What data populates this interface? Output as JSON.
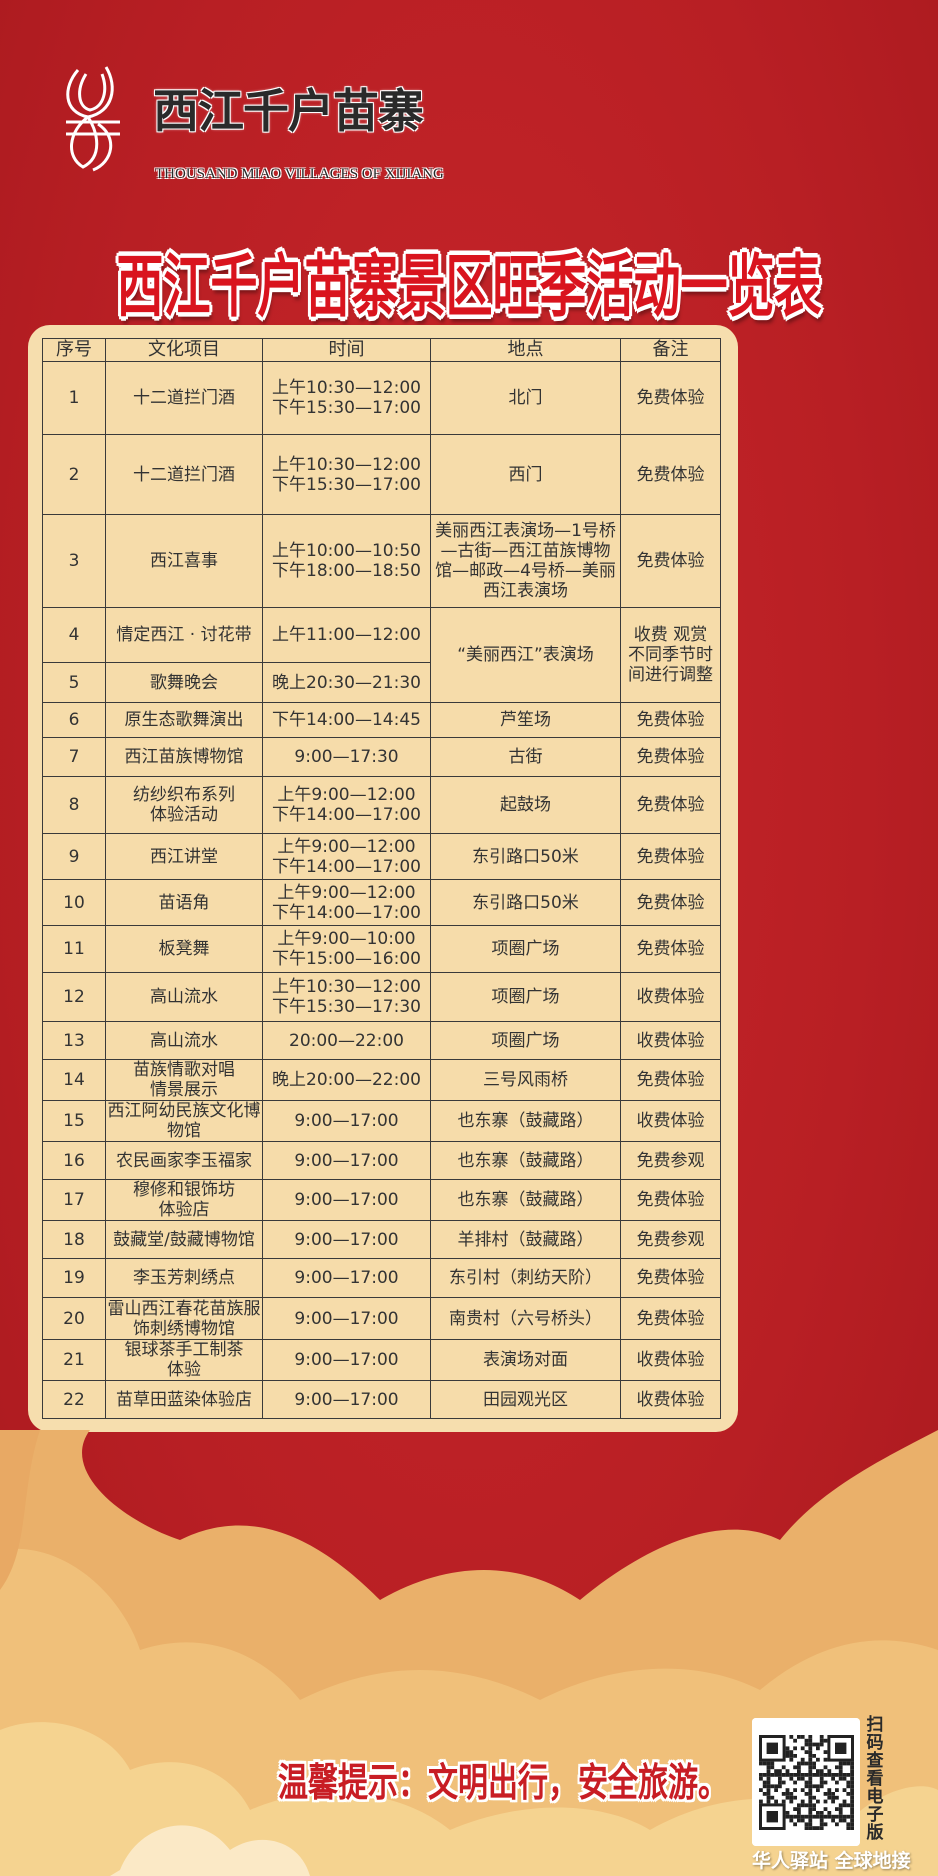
{
  "logo": {
    "cn": "西江千户苗寨",
    "en": "THOUSAND MIAO VILLAGES OF XIJIANG"
  },
  "title": "西江千户苗寨景区旺季活动一览表",
  "colors": {
    "background": "#b81f24",
    "panel": "#f6deae",
    "title": "#d9141e"
  },
  "table": {
    "headers": [
      "序号",
      "文化项目",
      "时间",
      "地点",
      "备注"
    ],
    "rows": [
      {
        "no": "1",
        "item": "十二道拦门酒",
        "time": "上午10:30—12:00\n下午15:30—17:00",
        "place": "北门",
        "note": "免费体验"
      },
      {
        "no": "2",
        "item": "十二道拦门酒",
        "time": "上午10:30—12:00\n下午15:30—17:00",
        "place": "西门",
        "note": "免费体验"
      },
      {
        "no": "3",
        "item": "西江喜事",
        "time": "上午10:00—10:50\n下午18:00—18:50",
        "place": "美丽西江表演场—1号桥\n—古街—西江苗族博物\n馆—邮政—4号桥—美丽\n西江表演场",
        "note": "免费体验"
      },
      {
        "no": "4",
        "item": "情定西江 · 讨花带",
        "time": "上午11:00—12:00",
        "place": "“美丽西江”表演场",
        "note": "收费 观赏\n不同季节时\n间进行调整"
      },
      {
        "no": "5",
        "item": "歌舞晚会",
        "time": "晚上20:30—21:30"
      },
      {
        "no": "6",
        "item": "原生态歌舞演出",
        "time": "下午14:00—14:45",
        "place": "芦笙场",
        "note": "免费体验"
      },
      {
        "no": "7",
        "item": "西江苗族博物馆",
        "time": "9:00—17:30",
        "place": "古街",
        "note": "免费体验"
      },
      {
        "no": "8",
        "item": "纺纱织布系列\n体验活动",
        "time": "上午9:00—12:00\n下午14:00—17:00",
        "place": "起鼓场",
        "note": "免费体验"
      },
      {
        "no": "9",
        "item": "西江讲堂",
        "time": "上午9:00—12:00\n下午14:00—17:00",
        "place": "东引路口50米",
        "note": "免费体验"
      },
      {
        "no": "10",
        "item": "苗语角",
        "time": "上午9:00—12:00\n下午14:00—17:00",
        "place": "东引路口50米",
        "note": "免费体验"
      },
      {
        "no": "11",
        "item": "板凳舞",
        "time": "上午9:00—10:00\n下午15:00—16:00",
        "place": "项圈广场",
        "note": "免费体验"
      },
      {
        "no": "12",
        "item": "高山流水",
        "time": "上午10:30—12:00\n下午15:30—17:30",
        "place": "项圈广场",
        "note": "收费体验"
      },
      {
        "no": "13",
        "item": "高山流水",
        "time": "20:00—22:00",
        "place": "项圈广场",
        "note": "收费体验"
      },
      {
        "no": "14",
        "item": "苗族情歌对唱\n情景展示",
        "time": "晚上20:00—22:00",
        "place": "三号风雨桥",
        "note": "免费体验"
      },
      {
        "no": "15",
        "item": "西江阿幼民族文化博\n物馆",
        "time": "9:00—17:00",
        "place": "也东寨（鼓藏路）",
        "note": "收费体验"
      },
      {
        "no": "16",
        "item": "农民画家李玉福家",
        "time": "9:00—17:00",
        "place": "也东寨（鼓藏路）",
        "note": "免费参观"
      },
      {
        "no": "17",
        "item": "穆修和银饰坊\n体验店",
        "time": "9:00—17:00",
        "place": "也东寨（鼓藏路）",
        "note": "免费体验"
      },
      {
        "no": "18",
        "item": "鼓藏堂/鼓藏博物馆",
        "time": "9:00—17:00",
        "place": "羊排村（鼓藏路）",
        "note": "免费参观"
      },
      {
        "no": "19",
        "item": "李玉芳刺绣点",
        "time": "9:00—17:00",
        "place": "东引村（刺纺天阶）",
        "note": "免费体验"
      },
      {
        "no": "20",
        "item": "雷山西江春花苗族服\n饰刺绣博物馆",
        "time": "9:00—17:00",
        "place": "南贵村（六号桥头）",
        "note": "免费体验"
      },
      {
        "no": "21",
        "item": "银球茶手工制茶\n体验",
        "time": "9:00—17:00",
        "place": "表演场对面",
        "note": "收费体验"
      },
      {
        "no": "22",
        "item": "苗草田蓝染体验店",
        "time": "9:00—17:00",
        "place": "田园观光区",
        "note": "收费体验"
      }
    ]
  },
  "footer": {
    "tip": "温馨提示：文明出行，安全旅游。",
    "qr_caption": "扫码查看电子版",
    "watermark": "华人驿站 全球地接",
    "qr_icon": "qr-code"
  }
}
